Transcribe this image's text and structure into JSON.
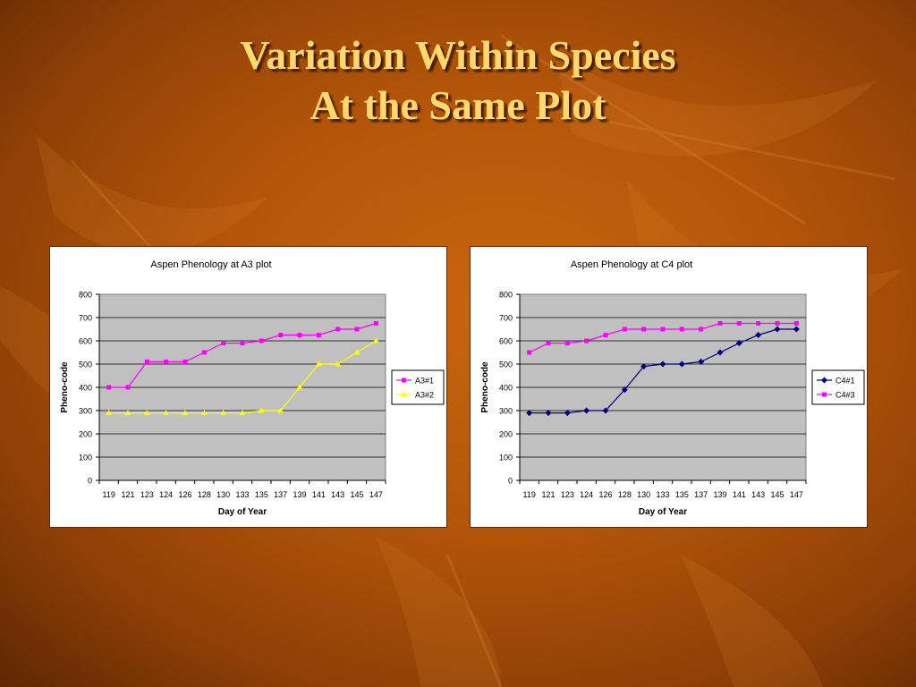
{
  "slide": {
    "title_line1": "Variation Within Species",
    "title_line2": "At the Same Plot"
  },
  "chart_data": [
    {
      "type": "line",
      "title": "Aspen Phenology at A3 plot",
      "xlabel": "Day of Year",
      "ylabel": "Pheno-code",
      "ylim": [
        0,
        800
      ],
      "yticks": [
        0,
        100,
        200,
        300,
        400,
        500,
        600,
        700,
        800
      ],
      "grid": true,
      "legend": "right",
      "categories": [
        "119",
        "121",
        "123",
        "124",
        "126",
        "128",
        "130",
        "133",
        "135",
        "137",
        "139",
        "141",
        "143",
        "145",
        "147"
      ],
      "series": [
        {
          "name": "A3#1",
          "color": "#ff00ff",
          "marker": "square",
          "values": [
            400,
            400,
            510,
            510,
            510,
            550,
            590,
            590,
            600,
            625,
            625,
            625,
            650,
            650,
            675
          ]
        },
        {
          "name": "A3#2",
          "color": "#ffff00",
          "marker": "triangle",
          "values": [
            290,
            290,
            290,
            290,
            290,
            290,
            290,
            290,
            300,
            300,
            400,
            500,
            500,
            550,
            600
          ]
        }
      ]
    },
    {
      "type": "line",
      "title": "Aspen Phenology at C4 plot",
      "xlabel": "Day of Year",
      "ylabel": "Pheno-code",
      "ylim": [
        0,
        800
      ],
      "yticks": [
        0,
        100,
        200,
        300,
        400,
        500,
        600,
        700,
        800
      ],
      "grid": true,
      "legend": "right",
      "categories": [
        "119",
        "121",
        "123",
        "124",
        "126",
        "128",
        "130",
        "133",
        "135",
        "137",
        "139",
        "141",
        "143",
        "145",
        "147"
      ],
      "series": [
        {
          "name": "C4#1",
          "color": "#000080",
          "marker": "diamond",
          "values": [
            290,
            290,
            290,
            300,
            300,
            390,
            490,
            500,
            500,
            510,
            550,
            590,
            625,
            650,
            650
          ]
        },
        {
          "name": "C4#3",
          "color": "#ff00ff",
          "marker": "square",
          "values": [
            550,
            590,
            590,
            600,
            625,
            650,
            650,
            650,
            650,
            650,
            675,
            675,
            675,
            675,
            675
          ]
        }
      ]
    }
  ]
}
